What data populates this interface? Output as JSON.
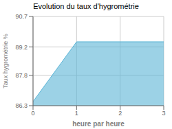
{
  "chart_data": {
    "type": "area",
    "title": "Evolution du taux d'hygrométrie",
    "xlabel": "heure par heure",
    "ylabel": "Taux hygrométrie %",
    "x": [
      0,
      1,
      3
    ],
    "values": [
      86.5,
      89.45,
      89.45
    ],
    "color": "#5ab4d6",
    "xlim": [
      0,
      3
    ],
    "ylim": [
      86.3,
      90.7
    ],
    "xticks": [
      0,
      1,
      2,
      3
    ],
    "yticks": [
      86.3,
      87.8,
      89.2,
      90.7
    ],
    "grid": true
  }
}
